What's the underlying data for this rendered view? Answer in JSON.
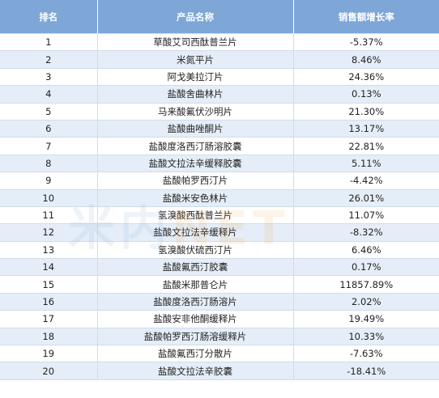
{
  "colors": {
    "header_bg": "#7ea7d8",
    "row_odd_bg": "#ffffff",
    "row_even_bg": "#e5eef8",
    "text": "#222222",
    "watermark_primary": "#7aa3d1",
    "watermark_accent": "#f0a040"
  },
  "table": {
    "headers": {
      "rank": "排名",
      "name": "产品名称",
      "rate": "销售额增长率"
    },
    "rows": [
      {
        "rank": "1",
        "name": "草酸艾司西酞普兰片",
        "rate": "-5.37%"
      },
      {
        "rank": "2",
        "name": "米氮平片",
        "rate": "8.46%"
      },
      {
        "rank": "3",
        "name": "阿戈美拉汀片",
        "rate": "24.36%"
      },
      {
        "rank": "4",
        "name": "盐酸舍曲林片",
        "rate": "0.13%"
      },
      {
        "rank": "5",
        "name": "马来酸氟伏沙明片",
        "rate": "21.30%"
      },
      {
        "rank": "6",
        "name": "盐酸曲唑酮片",
        "rate": "13.17%"
      },
      {
        "rank": "7",
        "name": "盐酸度洛西汀肠溶胶囊",
        "rate": "22.81%"
      },
      {
        "rank": "8",
        "name": "盐酸文拉法辛缓释胶囊",
        "rate": "5.11%"
      },
      {
        "rank": "9",
        "name": "盐酸帕罗西汀片",
        "rate": "-4.42%"
      },
      {
        "rank": "10",
        "name": "盐酸米安色林片",
        "rate": "26.01%"
      },
      {
        "rank": "11",
        "name": "氢溴酸西酞普兰片",
        "rate": "11.07%"
      },
      {
        "rank": "12",
        "name": "盐酸文拉法辛缓释片",
        "rate": "-8.32%"
      },
      {
        "rank": "13",
        "name": "氢溴酸伏硫西汀片",
        "rate": "6.46%"
      },
      {
        "rank": "14",
        "name": "盐酸氟西汀胶囊",
        "rate": "0.17%"
      },
      {
        "rank": "15",
        "name": "盐酸米那普仑片",
        "rate": "11857.89%"
      },
      {
        "rank": "16",
        "name": "盐酸度洛西汀肠溶片",
        "rate": "2.02%"
      },
      {
        "rank": "17",
        "name": "盐酸安非他酮缓释片",
        "rate": "19.49%"
      },
      {
        "rank": "18",
        "name": "盐酸帕罗西汀肠溶缓释片",
        "rate": "10.33%"
      },
      {
        "rank": "19",
        "name": "盐酸氟西汀分散片",
        "rate": "-7.63%"
      },
      {
        "rank": "20",
        "name": "盐酸文拉法辛胶囊",
        "rate": "-18.41%"
      }
    ]
  },
  "watermark": {
    "primary": "米内",
    "accent": "NET"
  }
}
